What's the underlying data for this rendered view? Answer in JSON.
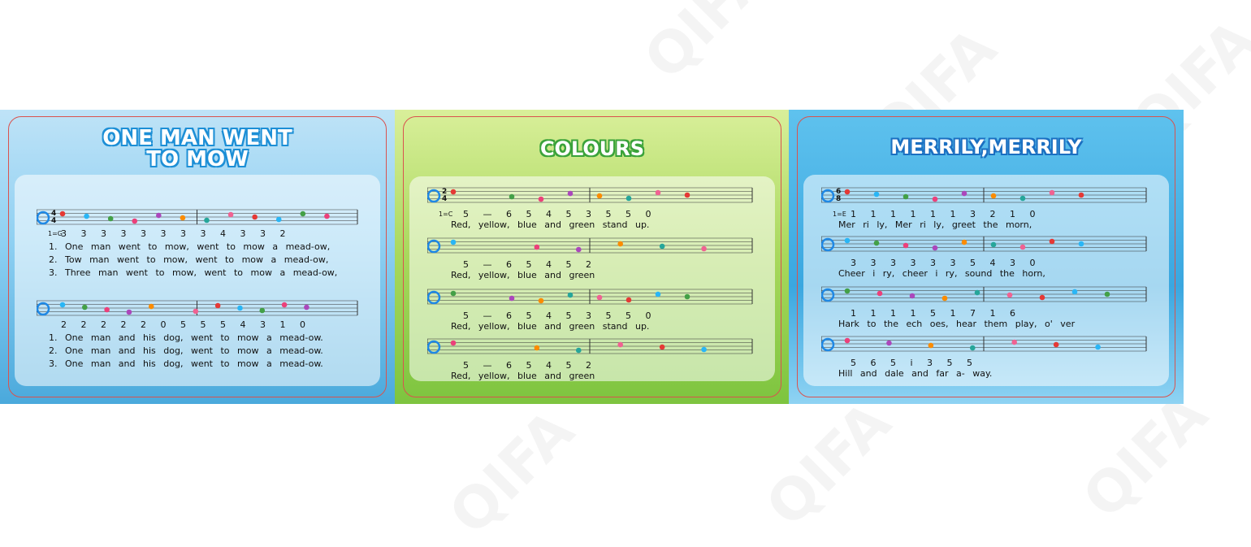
{
  "watermark": "QIFA",
  "panels": [
    {
      "title": [
        "ONE MAN WENT",
        "TO MOW"
      ],
      "key": "1=G",
      "time": [
        "4",
        "4"
      ],
      "rows": [
        {
          "numbers": "3 3 3 3 3 3 3 3 4 3 3 2",
          "lyrics": [
            "1. One man went to mow, went to mow a mead-ow,",
            "2. Tow man went to mow, went to mow a mead-ow,",
            "3. Three man went to mow, went to mow a mead-ow,"
          ]
        },
        {
          "numbers": "2 2 2 2 2 0 5 5 5 4 3 1 0",
          "lyrics": [
            "1. One man and his dog, went to mow a mead-ow.",
            "2. One man and his dog, went to mow a mead-ow.",
            "3. One man and his dog, went to mow a mead-ow."
          ]
        }
      ]
    },
    {
      "title": [
        "COLOURS"
      ],
      "key": "1=C",
      "time": [
        "2",
        "4"
      ],
      "rows": [
        {
          "numbers": "5 — 6 5 4 5 3 5 5 0",
          "lyrics": [
            "Red, yellow, blue and green stand up."
          ]
        },
        {
          "numbers": "5 — 6 5 4 5 2",
          "lyrics": [
            "Red, yellow, blue and green"
          ]
        },
        {
          "numbers": "5 — 6 5 4 5 3 5 5 0",
          "lyrics": [
            "Red, yellow, blue and green stand up."
          ]
        },
        {
          "numbers": "5 — 6 5 4 5 2",
          "lyrics": [
            "Red, yellow, blue and green"
          ]
        }
      ]
    },
    {
      "title": [
        "MERRILY,MERRILY"
      ],
      "key": "1=E",
      "time": [
        "6",
        "8"
      ],
      "rows": [
        {
          "numbers": "1 1 1 1 1 1 3 2 1 0",
          "lyrics": [
            "Mer ri ly, Mer ri ly, greet the morn,"
          ]
        },
        {
          "numbers": "3 3 3 3 3 3 5 4 3 0",
          "lyrics": [
            "Cheer i ry, cheer i ry, sound the horn,"
          ]
        },
        {
          "numbers": "1 1 1 1 5 1 7 1 6",
          "lyrics": [
            "Hark to the ech oes, hear them play, o' ver"
          ]
        },
        {
          "numbers": "5 6 5 i 3 5 5",
          "lyrics": [
            "Hill and dale and far a- way."
          ]
        }
      ]
    }
  ]
}
